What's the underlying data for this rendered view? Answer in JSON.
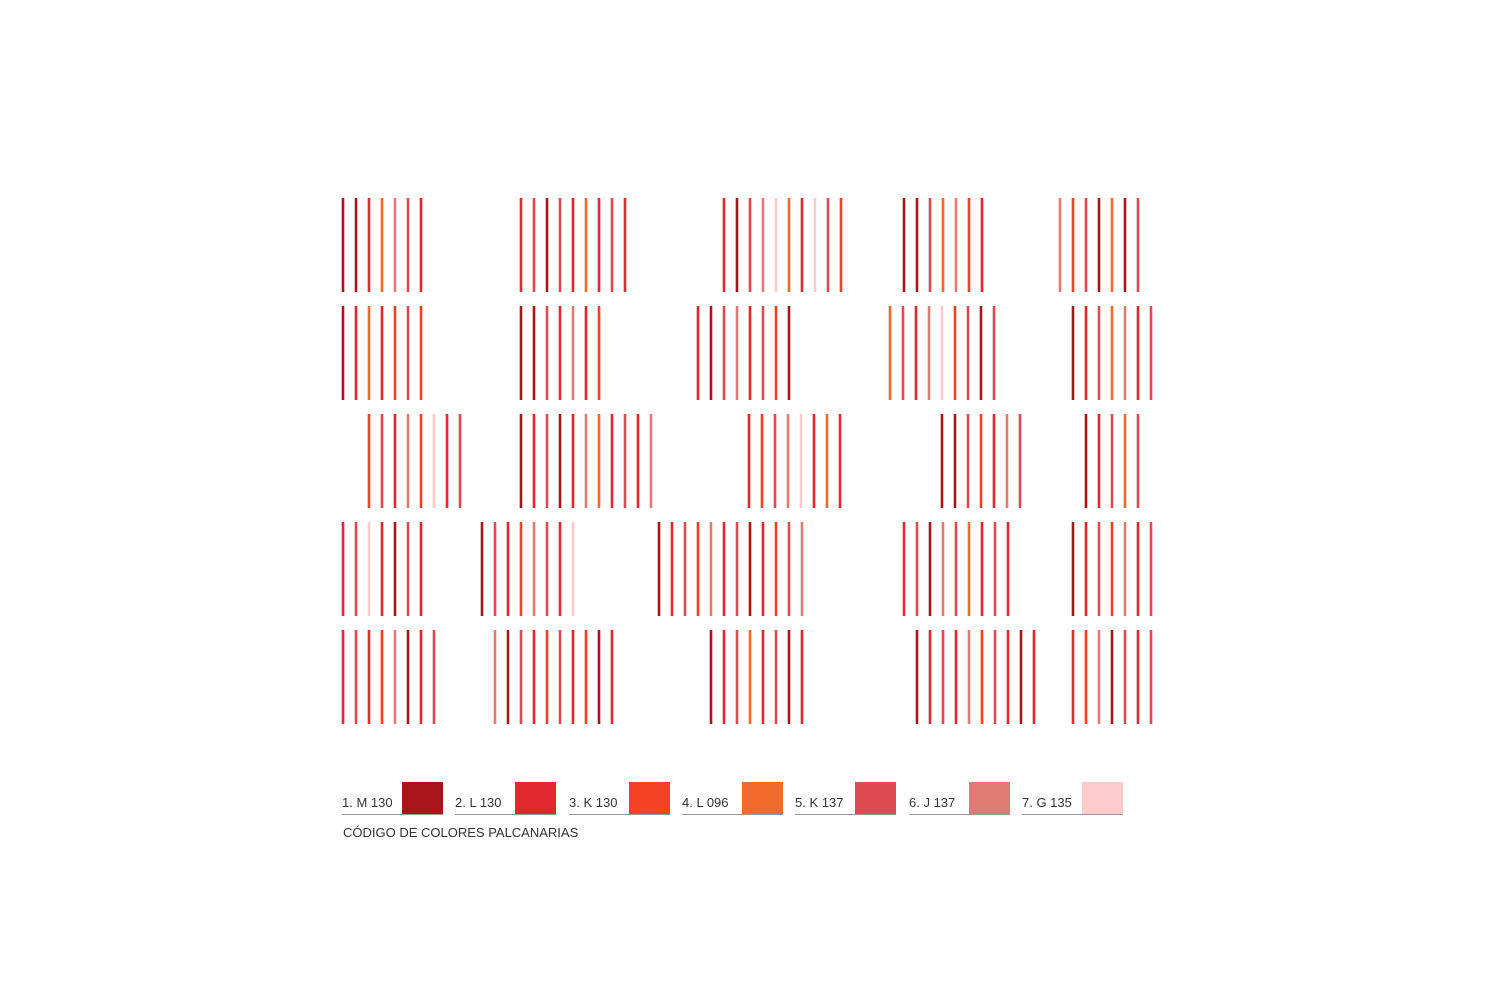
{
  "legend": [
    {
      "label": "1. M 130",
      "color": "#a8161a"
    },
    {
      "label": "2. L 130",
      "color": "#e0282e"
    },
    {
      "label": "3. K 130",
      "color": "#f34223"
    },
    {
      "label": "4. L 096",
      "color": "#f26a2c"
    },
    {
      "label": "5. K 137",
      "color": "#de4b55"
    },
    {
      "label": "6. J 137",
      "color": "#e07a75"
    },
    {
      "label": "7. G 135",
      "color": "#fecbcc"
    }
  ],
  "caption": "CÓDIGO DE COLORES PALCANARIAS",
  "stripes": [
    [
      [
        "#a8161a",
        "#a8161a",
        "#e0282e",
        "#f26a2c",
        "#e07a75",
        "#de4b55",
        "#e0282e"
      ],
      [
        "#e0282e",
        "#de4b55",
        "#a8161a",
        "#de4b55",
        "#e0282e",
        "#f26a2c",
        "#e0282e",
        "#de4b55",
        "#e0282e"
      ],
      [
        "#e0282e",
        "#a8161a",
        "#de4b55",
        "#e07a75",
        "#fecbcc",
        "#f26a2c",
        "#e0282e",
        "#fecbcc",
        "#de4b55",
        "#f34223"
      ],
      [
        "#a8161a",
        "#a8161a",
        "#de4b55",
        "#f26a2c",
        "#e07a75",
        "#f34223",
        "#e0282e"
      ],
      [
        "#e07a75",
        "#f34223",
        "#de4b55",
        "#a8161a",
        "#f26a2c",
        "#a8161a",
        "#de4b55"
      ]
    ],
    [
      [
        "#a8161a",
        "#e0282e",
        "#f26a2c",
        "#e0282e",
        "#f34223",
        "#de4b55",
        "#f34223"
      ],
      [
        "#a8161a",
        "#a8161a",
        "#de4b55",
        "#e0282e",
        "#e07a75",
        "#e0282e",
        "#f34223"
      ],
      [
        "#e0282e",
        "#a8161a",
        "#de4b55",
        "#e07a75",
        "#e0282e",
        "#de4b55",
        "#f34223",
        "#a8161a"
      ],
      [
        "#f26a2c",
        "#de4b55",
        "#e0282e",
        "#e07a75",
        "#fecbcc",
        "#f34223",
        "#de4b55",
        "#a8161a",
        "#de4b55"
      ],
      [
        "#a8161a",
        "#e0282e",
        "#de4b55",
        "#f26a2c",
        "#e07a75",
        "#e0282e",
        "#de4b55"
      ]
    ],
    [
      [
        "#f34223",
        "#de4b55",
        "#e0282e",
        "#e07a75",
        "#f34223",
        "#fecbcc",
        "#e0282e",
        "#de4b55"
      ],
      [
        "#a8161a",
        "#e0282e",
        "#de4b55",
        "#a8161a",
        "#e0282e",
        "#e07a75",
        "#f26a2c",
        "#e0282e",
        "#de4b55",
        "#e0282e",
        "#e07a75"
      ],
      [
        "#e0282e",
        "#f34223",
        "#de4b55",
        "#e07a75",
        "#fecbcc",
        "#e0282e",
        "#f26a2c",
        "#e0282e"
      ],
      [
        "#a8161a",
        "#a8161a",
        "#de4b55",
        "#f34223",
        "#e0282e",
        "#e07a75",
        "#de4b55"
      ],
      [
        "#a8161a",
        "#e0282e",
        "#de4b55",
        "#f26a2c",
        "#de4b55"
      ]
    ],
    [
      [
        "#e0282e",
        "#de4b55",
        "#fecbcc",
        "#e0282e",
        "#a8161a",
        "#de4b55",
        "#e0282e"
      ],
      [
        "#a8161a",
        "#de4b55",
        "#e0282e",
        "#f34223",
        "#e07a75",
        "#de4b55",
        "#e0282e",
        "#fecbcc"
      ],
      [
        "#a8161a",
        "#e0282e",
        "#de4b55",
        "#f34223",
        "#e07a75",
        "#e0282e",
        "#de4b55",
        "#a8161a",
        "#e0282e",
        "#f34223",
        "#de4b55",
        "#e07a75"
      ],
      [
        "#e0282e",
        "#de4b55",
        "#a8161a",
        "#e07a75",
        "#de4b55",
        "#f26a2c",
        "#e0282e",
        "#de4b55",
        "#e0282e"
      ],
      [
        "#a8161a",
        "#e0282e",
        "#de4b55",
        "#f34223",
        "#e07a75",
        "#e0282e",
        "#de4b55"
      ]
    ],
    [
      [
        "#e0282e",
        "#de4b55",
        "#e0282e",
        "#f34223",
        "#e07a75",
        "#a8161a",
        "#e0282e",
        "#de4b55"
      ],
      [
        "#e07a75",
        "#a8161a",
        "#de4b55",
        "#e0282e",
        "#f34223",
        "#de4b55",
        "#e0282e",
        "#f34223",
        "#a8161a",
        "#e0282e"
      ],
      [
        "#a8161a",
        "#e0282e",
        "#de4b55",
        "#f26a2c",
        "#e0282e",
        "#de4b55",
        "#a8161a",
        "#e0282e"
      ],
      [
        "#a8161a",
        "#e0282e",
        "#de4b55",
        "#e0282e",
        "#e07a75",
        "#f34223",
        "#de4b55",
        "#e0282e",
        "#a8161a",
        "#e0282e"
      ],
      [
        "#e0282e",
        "#f34223",
        "#e07a75",
        "#a8161a",
        "#de4b55",
        "#e0282e",
        "#de4b55"
      ]
    ]
  ]
}
